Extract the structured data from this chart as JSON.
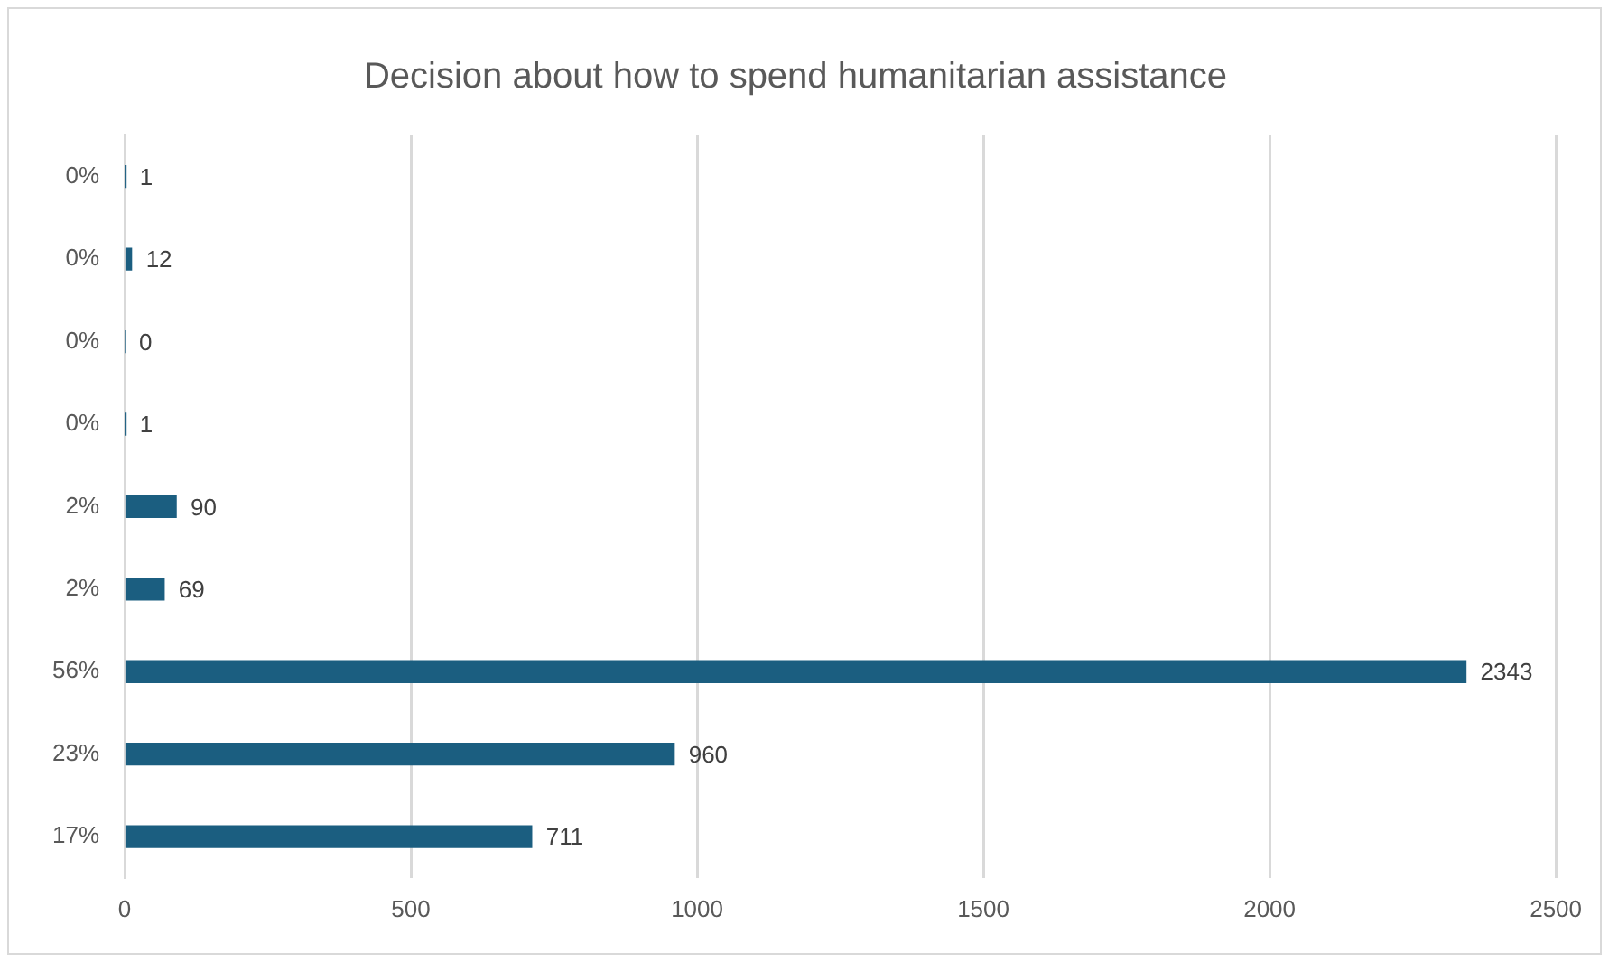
{
  "chart_data": {
    "type": "bar",
    "orientation": "horizontal",
    "title": "Decision about how to spend humanitarian assistance",
    "categories": [
      "0%",
      "0%",
      "0%",
      "0%",
      "2%",
      "2%",
      "56%",
      "23%",
      "17%"
    ],
    "values": [
      1,
      12,
      0,
      1,
      90,
      69,
      2343,
      960,
      711
    ],
    "color": "#1b5e80",
    "data_labels": true,
    "grid": "x",
    "legend": false,
    "xlim": [
      0,
      2500
    ],
    "xticks": [
      0,
      500,
      1000,
      1500,
      2000,
      2500
    ]
  }
}
